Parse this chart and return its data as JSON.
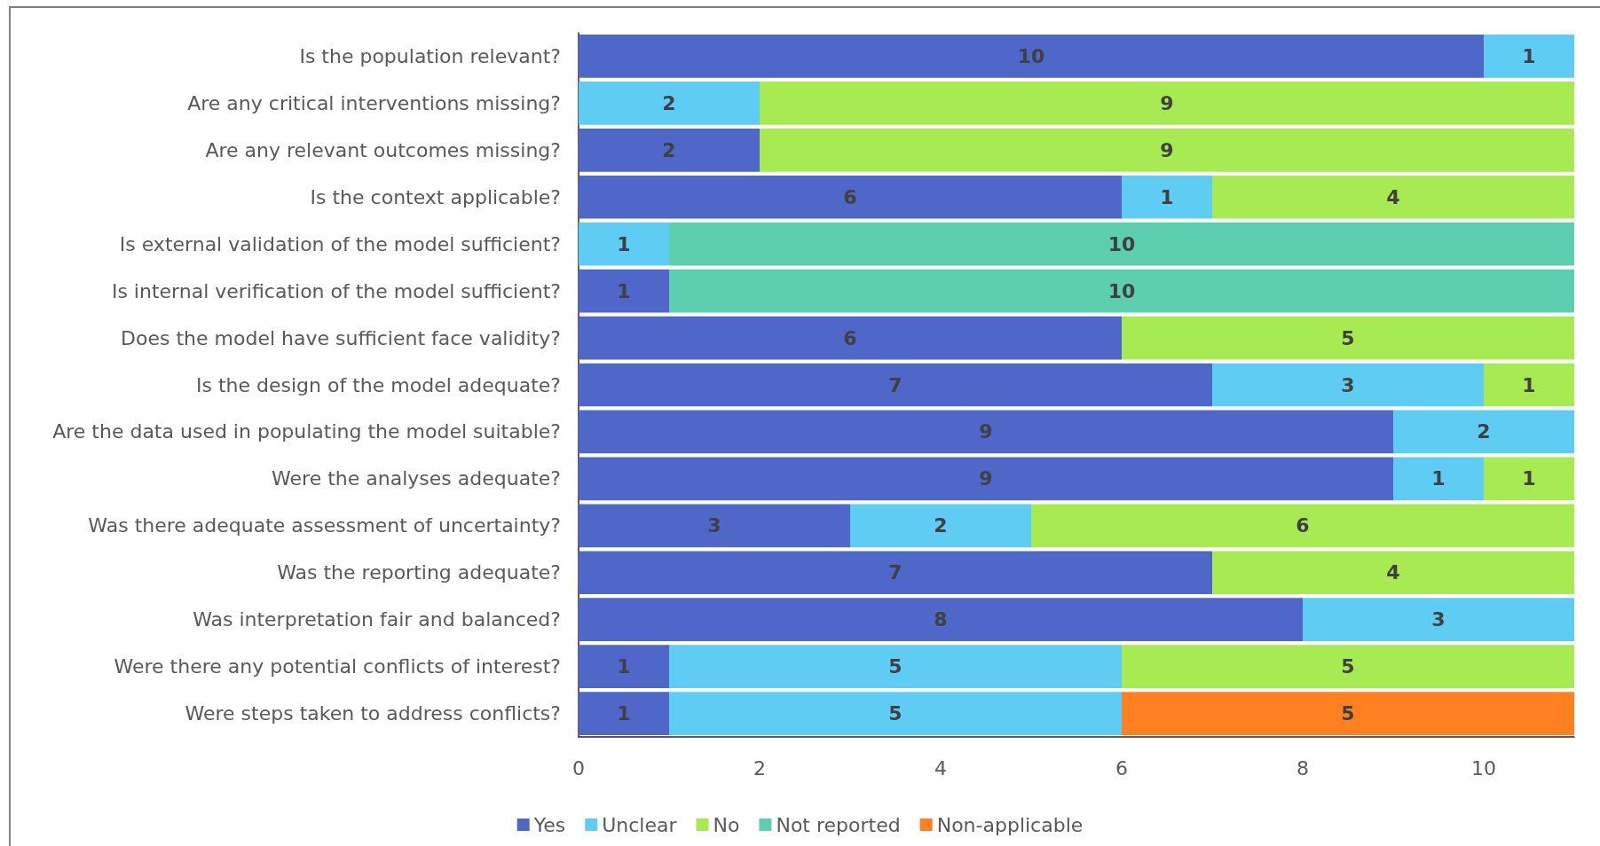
{
  "chart_data": {
    "type": "bar",
    "orientation": "horizontal",
    "stacked": true,
    "categories": [
      "Is the population relevant?",
      "Are any critical interventions missing?",
      "Are any relevant outcomes missing?",
      "Is the context applicable?",
      "Is external validation of the model sufficient?",
      "Is internal verification of the model sufficient?",
      "Does the model have sufficient face validity?",
      "Is the design of the model adequate?",
      "Are the data used in populating the model suitable?",
      "Were the analyses adequate?",
      "Was there adequate assessment of uncertainty?",
      "Was the reporting adequate?",
      "Was interpretation fair and balanced?",
      "Were there any potential conflicts of interest?",
      "Were steps taken to address conflicts?"
    ],
    "series": [
      {
        "name": "Yes",
        "color": "#4e67c8",
        "values": [
          10,
          null,
          2,
          6,
          null,
          1,
          6,
          7,
          9,
          9,
          3,
          7,
          8,
          1,
          1
        ]
      },
      {
        "name": "Unclear",
        "color": "#5eccf3",
        "values": [
          1,
          2,
          null,
          1,
          1,
          null,
          null,
          3,
          2,
          1,
          2,
          null,
          3,
          5,
          5
        ]
      },
      {
        "name": "No",
        "color": "#a7ea52",
        "values": [
          null,
          9,
          9,
          4,
          null,
          null,
          5,
          1,
          null,
          1,
          6,
          4,
          null,
          5,
          null
        ]
      },
      {
        "name": "Not reported",
        "color": "#5dceaf",
        "values": [
          null,
          null,
          null,
          null,
          10,
          10,
          null,
          null,
          null,
          null,
          null,
          null,
          null,
          null,
          null
        ]
      },
      {
        "name": "Non-applicable",
        "color": "#ff8021",
        "values": [
          null,
          null,
          null,
          null,
          null,
          null,
          null,
          null,
          null,
          null,
          null,
          null,
          null,
          null,
          5
        ]
      }
    ],
    "xlim": [
      0,
      11
    ],
    "xticks": [
      0,
      2,
      4,
      6,
      8,
      10
    ],
    "data_labels": true,
    "legend": "bottom",
    "grid": false
  }
}
